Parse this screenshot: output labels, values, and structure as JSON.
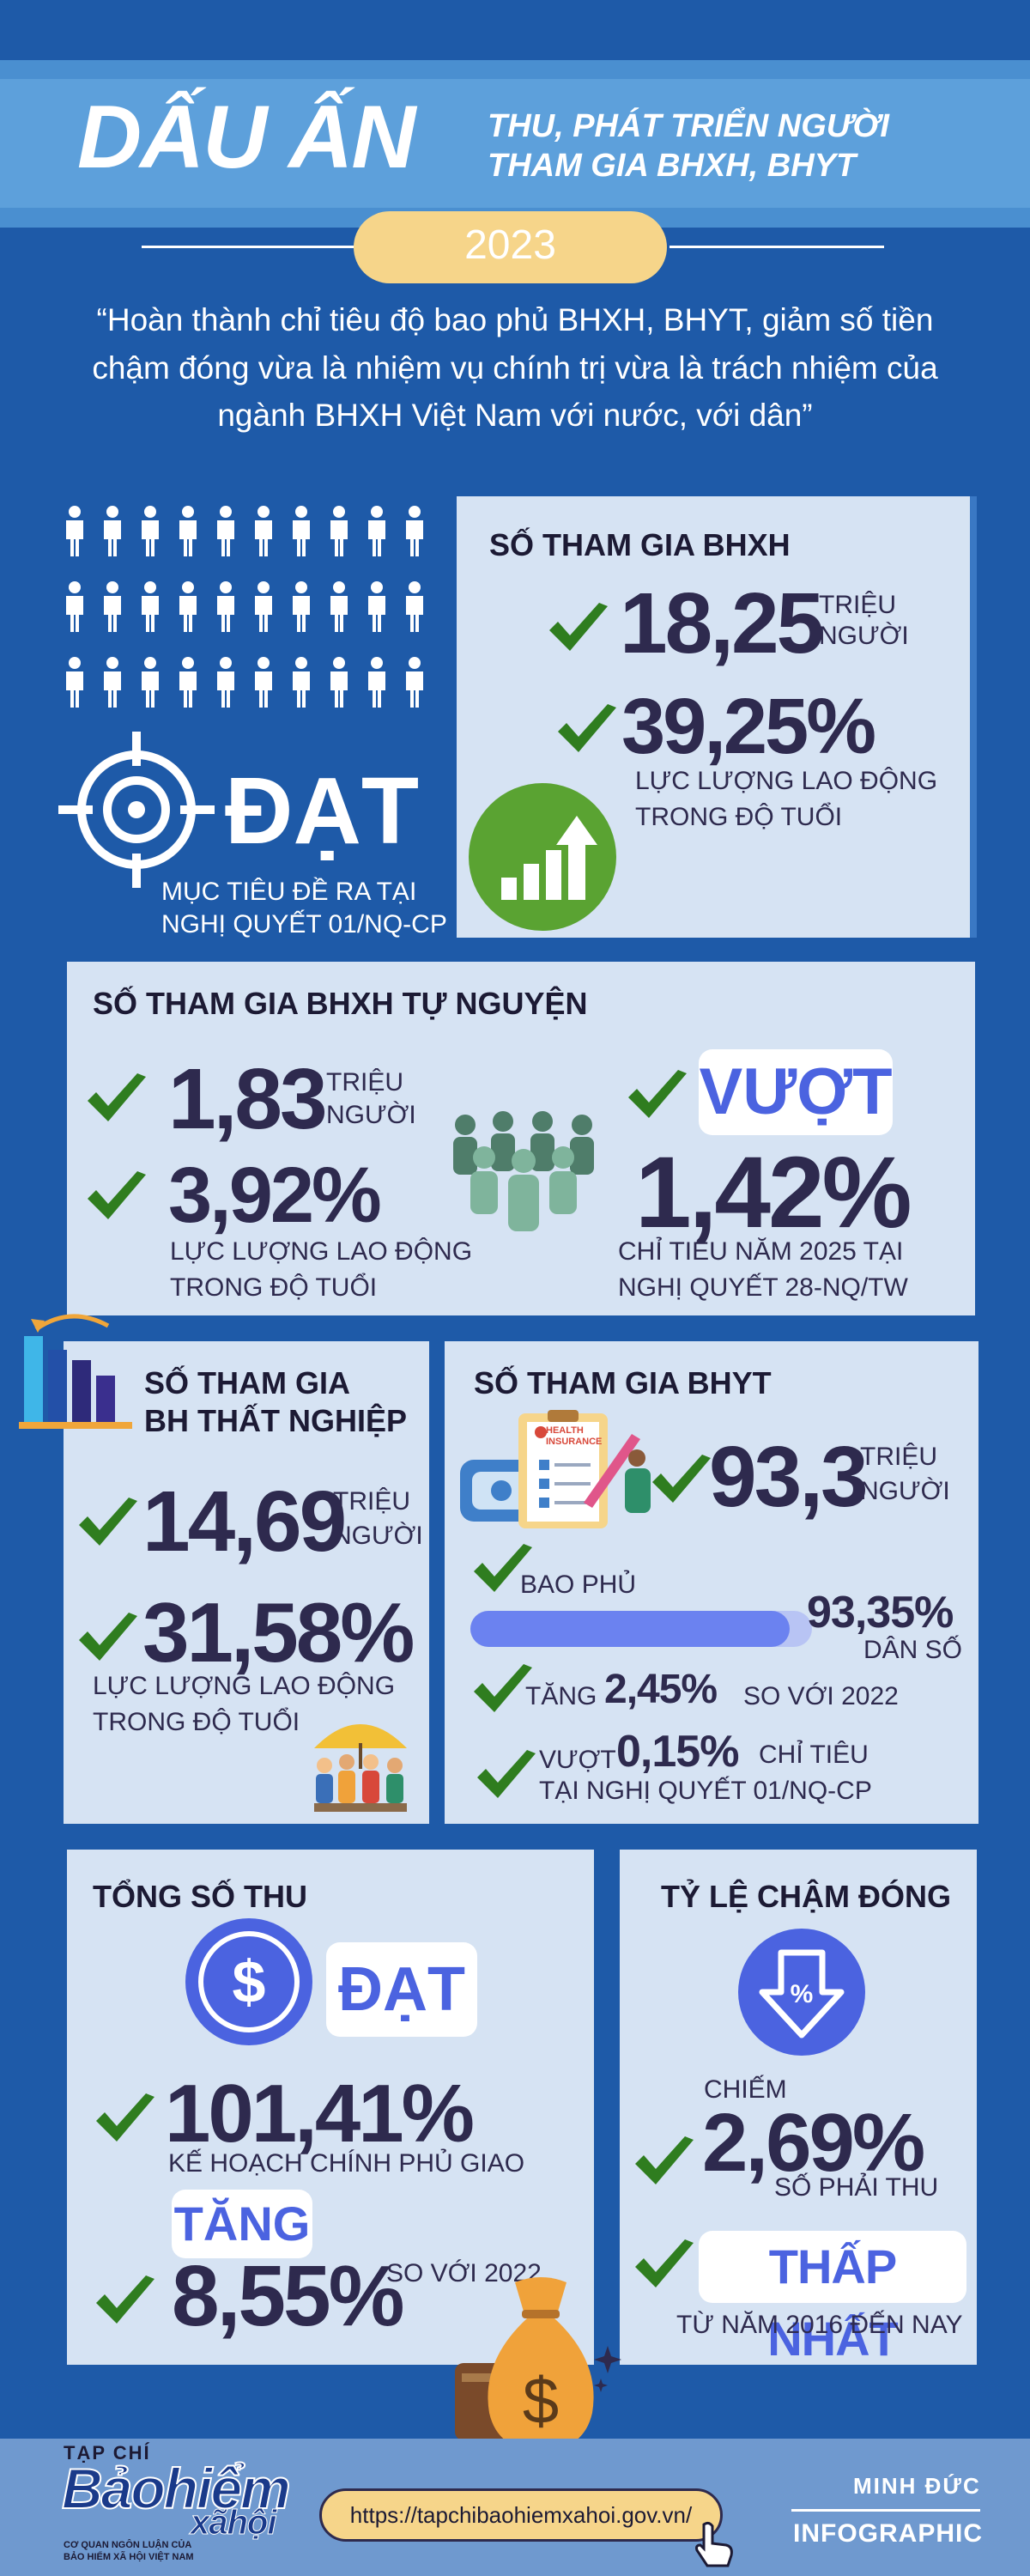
{
  "header": {
    "title_main": "DẤU ẤN",
    "title_sub_1": "THU, PHÁT TRIỂN NGƯỜI",
    "title_sub_2": "THAM GIA BHXH, BHYT",
    "year": "2023",
    "quote": "“Hoàn thành chỉ tiêu độ bao phủ BHXH, BHYT, giảm số tiền chậm đóng vừa là nhiệm vụ chính trị vừa là trách nhiệm của ngành BHXH Việt Nam với nước, với dân”"
  },
  "target": {
    "status": "ĐẠT",
    "caption_1": "MỤC TIÊU ĐỀ RA TẠI",
    "caption_2": "NGHỊ QUYẾT 01/NQ-CP"
  },
  "bhxh": {
    "title": "SỐ THAM GIA BHXH",
    "value": "18,25",
    "unit_1": "TRIỆU",
    "unit_2": "NGƯỜI",
    "percent": "39,25%",
    "percent_label_1": "LỰC LƯỢNG LAO ĐỘNG",
    "percent_label_2": "TRONG ĐỘ TUỔI"
  },
  "voluntary": {
    "title": "SỐ THAM GIA BHXH TỰ NGUYỆN",
    "value": "1,83",
    "unit_1": "TRIỆU",
    "unit_2": "NGƯỜI",
    "percent": "3,92%",
    "percent_label_1": "LỰC LƯỢNG LAO ĐỘNG",
    "percent_label_2": "TRONG ĐỘ TUỔI",
    "exceed_label": "VƯỢT",
    "exceed_value": "1,42%",
    "exceed_caption_1": "CHỈ TIÊU NĂM 2025 TẠI",
    "exceed_caption_2": "NGHỊ QUYẾT 28-NQ/TW"
  },
  "unemployment": {
    "title_1": "SỐ THAM GIA",
    "title_2": "BH THẤT NGHIỆP",
    "value": "14,69",
    "unit_1": "TRIỆU",
    "unit_2": "NGƯỜI",
    "percent": "31,58%",
    "percent_label_1": "LỰC LƯỢNG LAO ĐỘNG",
    "percent_label_2": "TRONG ĐỘ TUỔI"
  },
  "bhyt": {
    "title": "SỐ THAM GIA BHYT",
    "card_line_1": "HEALTH",
    "card_line_2": "INSURANCE",
    "value": "93,3",
    "unit_1": "TRIỆU",
    "unit_2": "NGƯỜI",
    "coverage_label": "BAO PHỦ",
    "coverage_value": "93,35%",
    "coverage_fraction": 0.9335,
    "coverage_unit": "DÂN SỐ",
    "increase_prefix": "TĂNG",
    "increase_value": "2,45%",
    "increase_suffix": "SO VỚI 2022",
    "exceed_prefix": "VƯỢT",
    "exceed_value": "0,15%",
    "exceed_suffix": "CHỈ TIÊU",
    "exceed_caption": "TẠI NGHỊ QUYẾT 01/NQ-CP"
  },
  "revenue": {
    "title": "TỔNG SỐ THU",
    "status": "ĐẠT",
    "percent": "101,41%",
    "percent_label": "KẾ HOẠCH CHÍNH PHỦ GIAO",
    "increase_label": "TĂNG",
    "increase_value": "8,55%",
    "increase_suffix": "SO VỚI 2022"
  },
  "late": {
    "title": "TỶ LỆ CHẬM ĐÓNG",
    "prefix": "CHIẾM",
    "percent": "2,69%",
    "percent_label": "SỐ PHẢI THU",
    "lowest_label": "THẤP NHẤT",
    "lowest_caption": "TỪ NĂM 2016 ĐẾN NAY"
  },
  "footer": {
    "logo_top": "TẠP CHÍ",
    "logo_main": "Bảohiểm",
    "logo_sub": "xãhội",
    "logo_caption_1": "CƠ QUAN NGÔN LUẬN CỦA",
    "logo_caption_2": "BẢO HIỂM XÃ HỘI VIỆT NAM",
    "url": "https://tapchibaohiemxahoi.gov.vn/",
    "author": "MINH ĐỨC",
    "type": "INFOGRAPHIC"
  },
  "colors": {
    "background": "#1e5aa8",
    "panel": "#d6e3f3",
    "text_dark": "#2e2a4e",
    "check_green": "#2f7d1f",
    "accent_blue": "#4b63e0",
    "gold": "#f6d58a"
  }
}
